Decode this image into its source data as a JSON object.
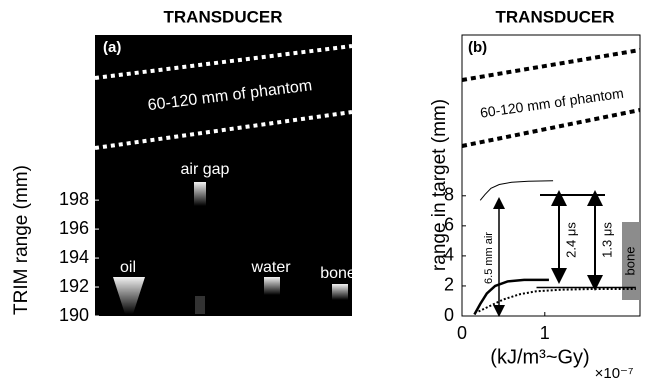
{
  "chart_data": [
    {
      "type": "image",
      "title": "TRANSDUCER",
      "panel_label": "(a)",
      "ylabel": "TRIM range (mm)",
      "ylim": [
        190,
        209.4
      ],
      "yticks": [
        190,
        192,
        194,
        196,
        198
      ],
      "annotations": [
        "60-120 mm of phantom",
        "air gap",
        "oil",
        "water",
        "bone"
      ]
    },
    {
      "type": "line",
      "title": "TRANSDUCER",
      "panel_label": "(b)",
      "ylabel": "range in target (mm)",
      "xlabel": "(kJ/m³~Gy)",
      "x_multiplier": "×10⁻⁷",
      "xlim": [
        0,
        2.15
      ],
      "xticks": [
        0,
        1
      ],
      "ylim": [
        0,
        18.7
      ],
      "yticks": [
        0,
        2,
        4,
        6,
        8
      ],
      "series": [
        {
          "color": "#000000",
          "width": 1,
          "dash": "none",
          "x": [
            0.22,
            0.28,
            0.35,
            0.45,
            0.6,
            0.8,
            1.1
          ],
          "values": [
            7.7,
            8.1,
            8.5,
            8.75,
            8.9,
            8.97,
            9.0
          ]
        },
        {
          "color": "#000000",
          "width": 2.5,
          "dash": "none",
          "x": [
            0.15,
            0.22,
            0.3,
            0.4,
            0.55,
            0.75,
            1.05
          ],
          "values": [
            0.1,
            0.8,
            1.5,
            2.0,
            2.3,
            2.4,
            2.4
          ]
        },
        {
          "color": "#000000",
          "width": 2,
          "dash": "2,2",
          "x": [
            0.2,
            0.35,
            0.5,
            0.7,
            0.9,
            1.2,
            1.6,
            2.1
          ],
          "values": [
            0.3,
            0.7,
            1.1,
            1.45,
            1.65,
            1.75,
            1.8,
            1.8
          ]
        },
        {
          "color": "#000000",
          "width": 1.5,
          "dash": "none",
          "x": [
            0.9,
            1.3,
            1.7,
            2.1
          ],
          "values": [
            1.9,
            1.9,
            1.9,
            1.9
          ]
        }
      ],
      "annotations": [
        "6.5 mm air",
        "2.4 μs",
        "1.3 μs",
        "bone"
      ]
    }
  ]
}
